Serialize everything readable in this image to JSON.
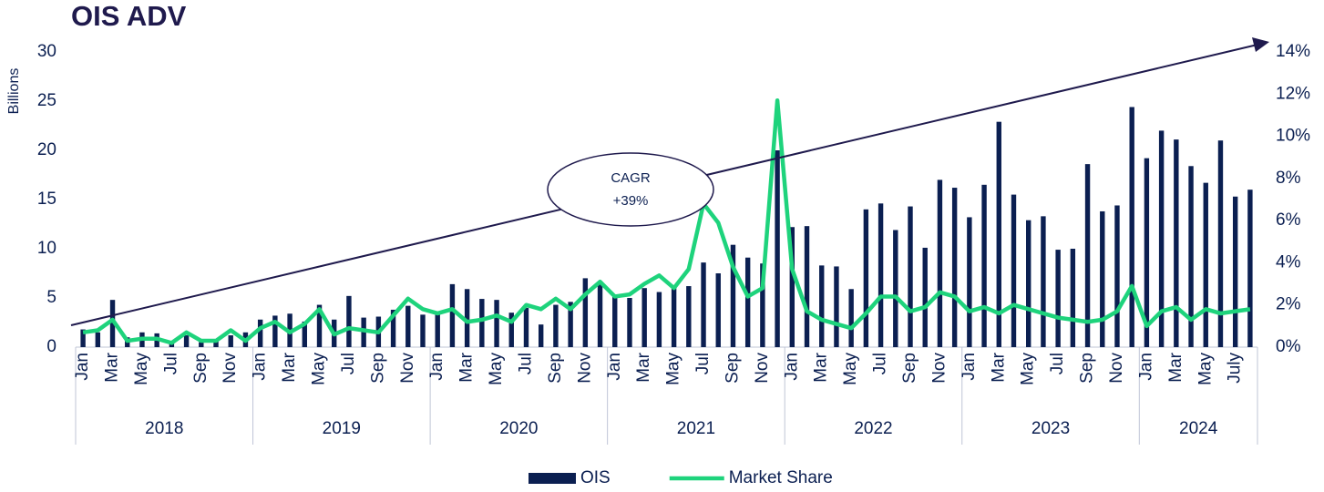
{
  "chart_data": {
    "type": "bar_line",
    "title": "OIS ADV",
    "y_label": "Billions",
    "annotation": [
      "CAGR",
      "+39%"
    ],
    "years": [
      "2018",
      "2019",
      "2020",
      "2021",
      "2022",
      "2023",
      "2024"
    ],
    "categories": [
      "Jan",
      null,
      "Mar",
      null,
      "May",
      null,
      "Jul",
      null,
      "Sep",
      null,
      "Nov",
      null,
      "Jan",
      null,
      "Mar",
      null,
      "May",
      null,
      "Jul",
      null,
      "Sep",
      null,
      "Nov",
      null,
      "Jan",
      null,
      "Mar",
      null,
      "May",
      null,
      "Jul",
      null,
      "Sep",
      null,
      "Nov",
      null,
      "Jan",
      null,
      "Mar",
      null,
      "May",
      null,
      "Jul",
      null,
      "Sep",
      null,
      "Nov",
      null,
      "Jan",
      null,
      "Mar",
      null,
      "May",
      null,
      "Jul",
      null,
      "Sep",
      null,
      "Nov",
      null,
      "Jan",
      null,
      "Mar",
      null,
      "May",
      null,
      "Jul",
      null,
      "Sep",
      null,
      "Nov",
      null,
      "Jan",
      null,
      "Mar",
      null,
      "May",
      null,
      "July",
      null
    ],
    "series": [
      {
        "name": "OIS",
        "color": "#0b1f51",
        "kind": "bar",
        "axis": "y",
        "values": [
          1.8,
          1.5,
          4.8,
          1.0,
          1.5,
          1.4,
          0.5,
          1.2,
          0.5,
          0.8,
          1.2,
          1.5,
          2.8,
          3.2,
          3.4,
          2.6,
          4.3,
          2.8,
          5.2,
          3.0,
          3.1,
          3.8,
          4.2,
          3.3,
          3.5,
          6.4,
          5.9,
          4.9,
          4.8,
          3.5,
          4.0,
          2.3,
          4.3,
          4.6,
          7.0,
          6.5,
          5.1,
          5.0,
          6.0,
          5.6,
          6.0,
          6.2,
          8.6,
          7.5,
          10.4,
          9.1,
          8.5,
          20.0,
          12.2,
          12.3,
          8.3,
          8.2,
          5.9,
          14.0,
          14.6,
          11.9,
          14.3,
          10.1,
          17.0,
          16.2,
          13.2,
          16.5,
          22.9,
          15.5,
          12.9,
          13.3,
          9.9,
          10.0,
          18.6,
          13.8,
          14.4,
          24.4,
          19.2,
          22.0,
          21.1,
          18.4,
          16.7,
          21.0,
          15.3,
          16.0
        ]
      },
      {
        "name": "Market Share",
        "color": "#1ed37c",
        "kind": "line",
        "axis": "y2",
        "values": [
          0.7,
          0.8,
          1.3,
          0.3,
          0.4,
          0.4,
          0.2,
          0.7,
          0.3,
          0.3,
          0.8,
          0.3,
          0.9,
          1.2,
          0.7,
          1.1,
          1.8,
          0.6,
          0.9,
          0.8,
          0.7,
          1.5,
          2.3,
          1.8,
          1.6,
          1.8,
          1.2,
          1.3,
          1.5,
          1.2,
          2.0,
          1.8,
          2.3,
          1.8,
          2.5,
          3.1,
          2.4,
          2.5,
          3.0,
          3.4,
          2.8,
          3.7,
          6.8,
          5.9,
          3.8,
          2.4,
          2.8,
          11.7,
          3.7,
          1.7,
          1.3,
          1.1,
          0.9,
          1.6,
          2.4,
          2.4,
          1.7,
          1.9,
          2.6,
          2.4,
          1.7,
          1.9,
          1.6,
          2.0,
          1.8,
          1.6,
          1.4,
          1.3,
          1.2,
          1.3,
          1.7,
          2.9,
          1.0,
          1.7,
          1.9,
          1.3,
          1.8,
          1.6,
          1.7,
          1.8
        ]
      }
    ],
    "ylim": [
      0,
      30
    ],
    "yticks": [
      0,
      5,
      10,
      15,
      20,
      25,
      30
    ],
    "y2lim": [
      0,
      14
    ],
    "y2ticks": [
      {
        "value": 0,
        "label": "0%"
      },
      {
        "value": 2,
        "label": "2%"
      },
      {
        "value": 4,
        "label": "4%"
      },
      {
        "value": 6,
        "label": "6%"
      },
      {
        "value": 8,
        "label": "8%"
      },
      {
        "value": 10,
        "label": "10%"
      },
      {
        "value": 12,
        "label": "12%"
      },
      {
        "value": 14,
        "label": "14%"
      }
    ],
    "legend": "bottom"
  }
}
